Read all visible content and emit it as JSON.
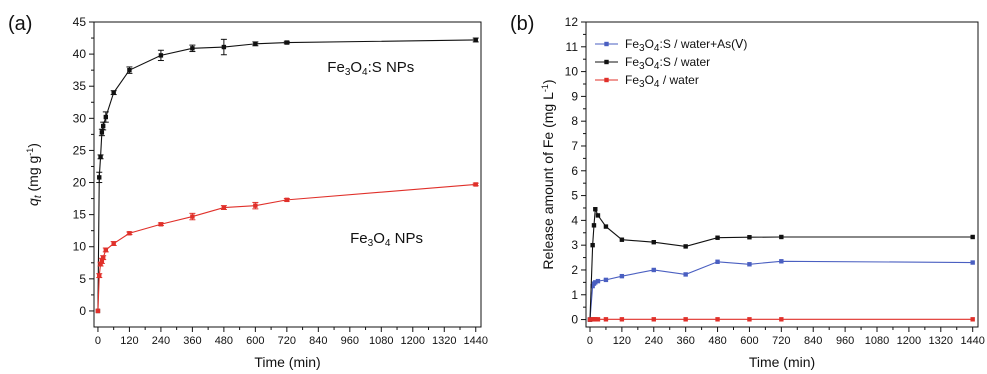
{
  "chart_data": [
    {
      "panel_label": "(a)",
      "type": "line",
      "xlabel": "Time (min)",
      "ylabel": {
        "main": "q",
        "sub": "t",
        "unit_pre": " (mg g",
        "unit_sup": "-1",
        "unit_post": ")"
      },
      "xlim": [
        -15,
        1460
      ],
      "ylim": [
        -2.5,
        45
      ],
      "xticks": [
        0,
        120,
        240,
        360,
        480,
        600,
        720,
        840,
        960,
        1080,
        1200,
        1320,
        1440
      ],
      "yticks": [
        0,
        5,
        10,
        15,
        20,
        25,
        30,
        35,
        40,
        45
      ],
      "grid": false,
      "legend": "none",
      "annotations": [
        {
          "series": 0,
          "parts": [
            "Fe",
            "3",
            "O",
            "4",
            ":S NPs"
          ],
          "at": [
            1040,
            37.2
          ]
        },
        {
          "series": 1,
          "parts": [
            "Fe",
            "3",
            "O",
            "4",
            " NPs"
          ],
          "at": [
            1100,
            10.6
          ]
        }
      ],
      "series": [
        {
          "name": "",
          "color": "#111111",
          "x": [
            0,
            5,
            10,
            15,
            20,
            30,
            60,
            120,
            240,
            360,
            480,
            600,
            720,
            1440
          ],
          "y": [
            0,
            20.8,
            24.0,
            27.8,
            28.8,
            30.2,
            34.0,
            37.5,
            39.8,
            40.9,
            41.1,
            41.6,
            41.8,
            42.2
          ],
          "err": [
            0,
            0.8,
            0.3,
            0.5,
            0.6,
            0.8,
            0.3,
            0.5,
            0.8,
            0.5,
            1.2,
            0.3,
            0.2,
            0.3
          ]
        },
        {
          "name": "",
          "color": "#e0302a",
          "x": [
            0,
            5,
            10,
            15,
            20,
            30,
            60,
            120,
            240,
            360,
            480,
            600,
            720,
            1440
          ],
          "y": [
            0,
            5.5,
            7.3,
            7.8,
            8.3,
            9.5,
            10.5,
            12.1,
            13.5,
            14.7,
            16.1,
            16.4,
            17.3,
            19.7
          ],
          "err": [
            0,
            0.3,
            0.3,
            0.4,
            0.3,
            0.3,
            0.3,
            0.2,
            0.2,
            0.5,
            0.3,
            0.5,
            0.2,
            0.2
          ]
        }
      ]
    },
    {
      "panel_label": "(b)",
      "type": "line",
      "xlabel": "Time (min)",
      "ylabel": {
        "main": "Release amount of Fe",
        "sub": "",
        "unit_pre": " (mg L",
        "unit_sup": "-1",
        "unit_post": ")"
      },
      "xlim": [
        -15,
        1460
      ],
      "ylim": [
        -0.3,
        12
      ],
      "xticks": [
        0,
        120,
        240,
        360,
        480,
        600,
        720,
        840,
        960,
        1080,
        1200,
        1320,
        1440
      ],
      "yticks": [
        0,
        1,
        2,
        3,
        4,
        5,
        6,
        7,
        8,
        9,
        10,
        11,
        12
      ],
      "grid": false,
      "legend": "top-left",
      "series": [
        {
          "name": "Fe3O4:S / water+As(V)",
          "legend_parts": [
            "Fe",
            "3",
            "O",
            "4",
            ":S / water+As(Ⅴ)"
          ],
          "color": "#4a5fc1",
          "x": [
            0,
            10,
            15,
            20,
            30,
            60,
            120,
            240,
            360,
            480,
            600,
            720,
            1440
          ],
          "y": [
            0,
            1.35,
            1.45,
            1.5,
            1.55,
            1.6,
            1.75,
            2.0,
            1.82,
            2.33,
            2.23,
            2.35,
            2.3
          ]
        },
        {
          "name": "Fe3O4:S / water",
          "legend_parts": [
            "Fe",
            "3",
            "O",
            "4",
            ":S / water"
          ],
          "color": "#111111",
          "x": [
            0,
            10,
            15,
            20,
            30,
            60,
            120,
            240,
            360,
            480,
            600,
            720,
            1440
          ],
          "y": [
            0,
            3.0,
            3.8,
            4.45,
            4.2,
            3.75,
            3.22,
            3.12,
            2.95,
            3.3,
            3.32,
            3.33,
            3.33
          ]
        },
        {
          "name": "Fe3O4 / water",
          "legend_parts": [
            "Fe",
            "3",
            "O",
            "4",
            " / water"
          ],
          "color": "#e0302a",
          "x": [
            0,
            10,
            15,
            20,
            30,
            60,
            120,
            240,
            360,
            480,
            600,
            720,
            1440
          ],
          "y": [
            0,
            0.01,
            0.01,
            0.01,
            0.01,
            0.01,
            0.01,
            0.01,
            0.01,
            0.01,
            0.01,
            0.01,
            0.01
          ]
        }
      ]
    }
  ]
}
